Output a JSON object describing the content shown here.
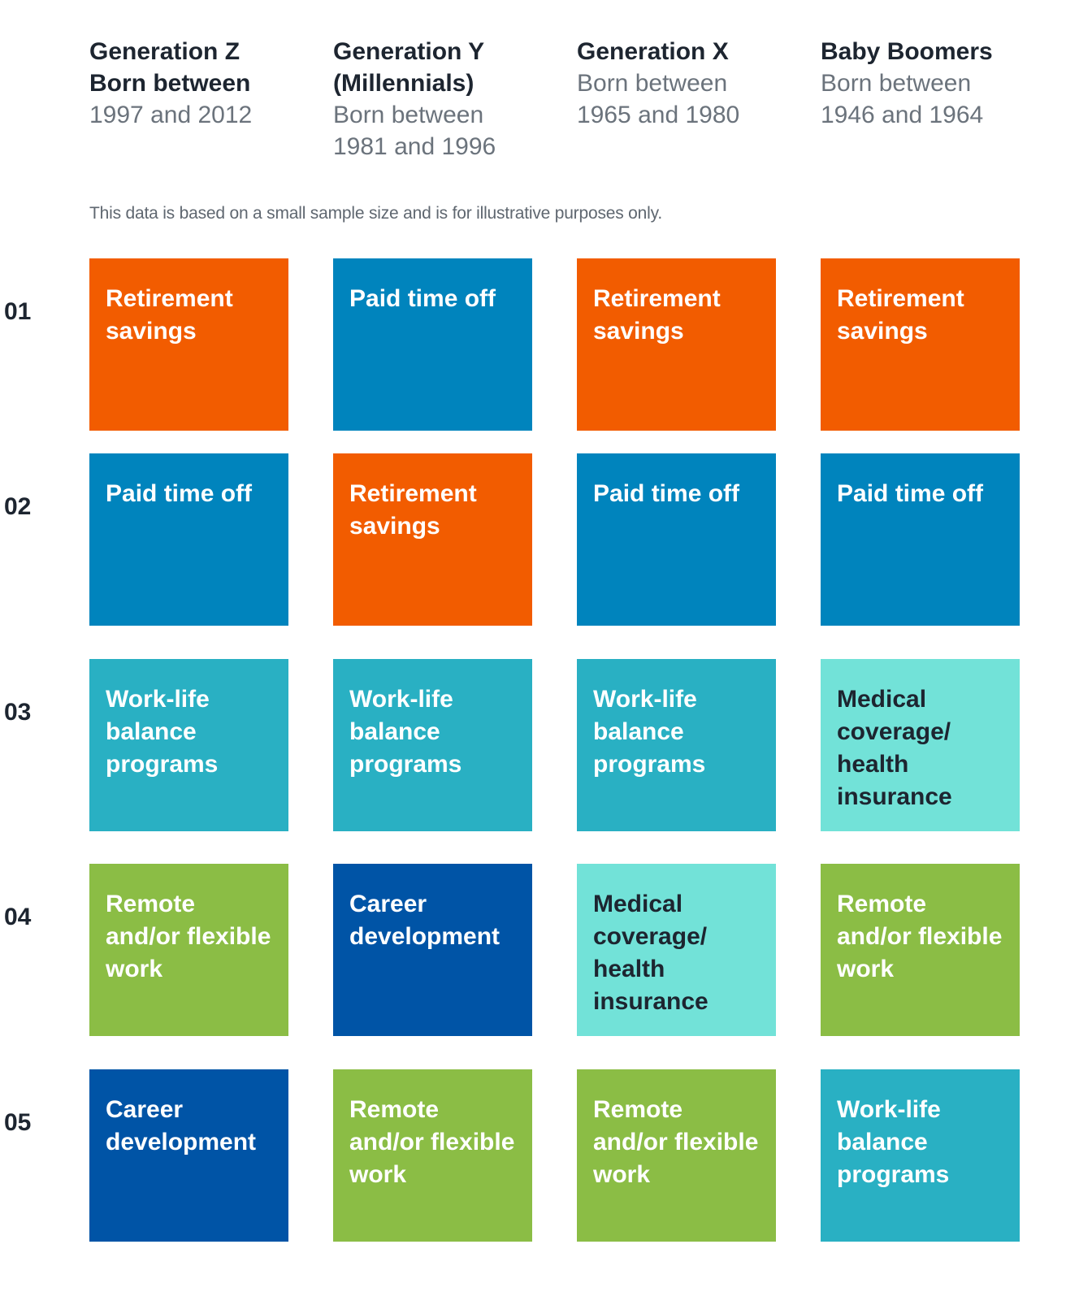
{
  "generations": [
    {
      "bold_lines": [
        "Generation Z",
        "Born between"
      ],
      "light_lines": [
        "1997 and 2012"
      ]
    },
    {
      "bold_lines": [
        "Generation Y",
        "(Millennials)"
      ],
      "light_lines": [
        "Born between",
        "1981 and 1996"
      ]
    },
    {
      "bold_lines": [
        "Generation X"
      ],
      "light_lines": [
        "Born between",
        "1965 and 1980"
      ]
    },
    {
      "bold_lines": [
        "Baby Boomers"
      ],
      "light_lines": [
        "Born between",
        "1946 and 1964"
      ]
    }
  ],
  "note": "This data is based on a small sample size and is for illustrative purposes only.",
  "ranks": [
    "01",
    "02",
    "03",
    "04",
    "05"
  ],
  "categories": {
    "retirement": {
      "label": "Retirement savings",
      "color": "#f25c00",
      "text_color": "#ffffff"
    },
    "pto": {
      "label": "Paid time off",
      "color": "#0084bd",
      "text_color": "#ffffff"
    },
    "worklife": {
      "label": "Work-life balance programs",
      "color": "#29b0c3",
      "text_color": "#ffffff"
    },
    "medical": {
      "label": "Medical coverage/ health insurance",
      "color": "#72e2d8",
      "text_color": "#1d2530"
    },
    "remote": {
      "label": "Remote and/or flexible work",
      "color": "#8bbd45",
      "text_color": "#ffffff"
    },
    "career": {
      "label": "Career development",
      "color": "#0054a6",
      "text_color": "#ffffff"
    }
  },
  "grid": [
    [
      "retirement",
      "pto",
      "retirement",
      "retirement"
    ],
    [
      "pto",
      "retirement",
      "pto",
      "pto"
    ],
    [
      "worklife",
      "worklife",
      "worklife",
      "medical"
    ],
    [
      "remote",
      "career",
      "medical",
      "remote"
    ],
    [
      "career",
      "remote",
      "remote",
      "worklife"
    ]
  ]
}
